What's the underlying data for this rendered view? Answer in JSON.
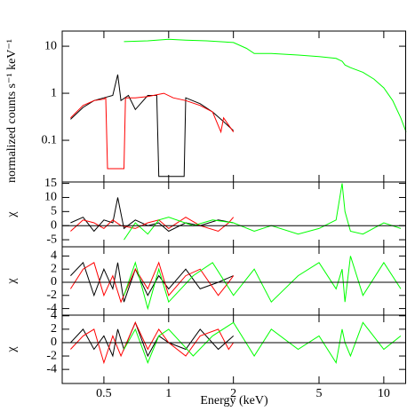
{
  "chart_data": [
    {
      "type": "line",
      "ylabel": "normalized counts s⁻¹ keV⁻¹",
      "xlog": true,
      "ylog": true,
      "xlim": [
        0.32,
        12.7
      ],
      "ylim": [
        0.013,
        21
      ],
      "yticks": [
        0.1,
        1,
        10
      ],
      "series": [
        {
          "color": "#000000",
          "x": [
            0.35,
            0.4,
            0.45,
            0.5,
            0.55,
            0.58,
            0.6,
            0.65,
            0.7,
            0.8,
            0.88,
            0.9,
            1.18,
            1.2,
            1.4,
            1.6,
            1.8,
            2.0
          ],
          "values": [
            0.28,
            0.5,
            0.7,
            0.8,
            0.9,
            2.5,
            0.7,
            0.9,
            0.45,
            0.9,
            0.9,
            0.017,
            0.017,
            0.8,
            0.6,
            0.4,
            0.25,
            0.16
          ]
        },
        {
          "color": "#ff0000",
          "x": [
            0.35,
            0.4,
            0.45,
            0.5,
            0.51,
            0.52,
            0.62,
            0.63,
            0.7,
            0.8,
            0.95,
            1.05,
            1.2,
            1.4,
            1.6,
            1.75,
            1.8,
            2.0
          ],
          "values": [
            0.3,
            0.55,
            0.7,
            0.75,
            0.8,
            0.025,
            0.025,
            0.8,
            0.8,
            0.85,
            1.0,
            0.8,
            0.7,
            0.55,
            0.4,
            0.15,
            0.3,
            0.15
          ]
        },
        {
          "color": "#00ff00",
          "x": [
            0.62,
            0.8,
            1.0,
            1.2,
            1.5,
            2.0,
            2.3,
            2.5,
            3.0,
            4.0,
            5.0,
            6.0,
            6.4,
            6.6,
            7.0,
            8.0,
            9.0,
            10.0,
            11.0,
            12.0,
            12.7
          ],
          "values": [
            12.5,
            13,
            14,
            13.5,
            13,
            12,
            9,
            7,
            7,
            6.5,
            6,
            5.5,
            4.8,
            4,
            3.5,
            2.8,
            2,
            1.3,
            0.7,
            0.3,
            0.15
          ]
        }
      ]
    },
    {
      "type": "line",
      "ylabel": "χ",
      "xlog": true,
      "xlim": [
        0.32,
        12.7
      ],
      "ylim": [
        -7.5,
        15.5
      ],
      "yticks": [
        -5,
        0,
        5,
        10,
        15
      ],
      "reference_line": 0,
      "series": [
        {
          "color": "#000000",
          "x": [
            0.35,
            0.4,
            0.45,
            0.5,
            0.55,
            0.58,
            0.62,
            0.7,
            0.8,
            0.9,
            1.0,
            1.2,
            1.4,
            1.7,
            2.0
          ],
          "values": [
            1,
            3,
            -2,
            2,
            1,
            10,
            -1,
            2,
            0,
            1,
            -2,
            1,
            0,
            2,
            1
          ]
        },
        {
          "color": "#ff0000",
          "x": [
            0.35,
            0.4,
            0.45,
            0.5,
            0.55,
            0.6,
            0.7,
            0.8,
            0.9,
            1.0,
            1.2,
            1.4,
            1.7,
            1.9,
            2.0
          ],
          "values": [
            -2,
            2,
            1,
            -1,
            2,
            0,
            -1,
            1,
            2,
            -1,
            3,
            0,
            -2,
            1,
            3
          ]
        },
        {
          "color": "#00ff00",
          "x": [
            0.62,
            0.7,
            0.8,
            0.9,
            1.0,
            1.3,
            1.6,
            2.0,
            2.5,
            3.0,
            4.0,
            5.0,
            6.0,
            6.4,
            6.6,
            7.0,
            8.0,
            10.0,
            12.0
          ],
          "values": [
            -5,
            1,
            -3,
            2,
            3,
            0,
            2,
            1,
            -2,
            0,
            -3,
            -1,
            2,
            15,
            5,
            -2,
            -3,
            1,
            -1
          ]
        }
      ]
    },
    {
      "type": "line",
      "ylabel": "χ",
      "xlog": true,
      "xlim": [
        0.32,
        12.7
      ],
      "ylim": [
        -5,
        5.4
      ],
      "yticks": [
        -4,
        -2,
        0,
        2,
        4
      ],
      "reference_line": 0,
      "series": [
        {
          "color": "#000000",
          "x": [
            0.35,
            0.4,
            0.45,
            0.5,
            0.55,
            0.58,
            0.62,
            0.7,
            0.8,
            0.9,
            1.0,
            1.2,
            1.4,
            1.7,
            2.0
          ],
          "values": [
            1,
            3,
            -2,
            2,
            -1,
            3,
            -3,
            2,
            -2,
            1,
            -1,
            2,
            -1,
            0,
            1
          ]
        },
        {
          "color": "#ff0000",
          "x": [
            0.35,
            0.4,
            0.45,
            0.5,
            0.55,
            0.6,
            0.7,
            0.8,
            0.9,
            1.0,
            1.2,
            1.4,
            1.7,
            1.9,
            2.0
          ],
          "values": [
            -1,
            2,
            3,
            -2,
            1,
            -3,
            2,
            -1,
            3,
            -2,
            1,
            2,
            -2,
            0,
            1
          ]
        },
        {
          "color": "#00ff00",
          "x": [
            0.62,
            0.7,
            0.8,
            0.9,
            1.0,
            1.3,
            1.6,
            2.0,
            2.5,
            3.0,
            4.0,
            5.0,
            6.0,
            6.4,
            6.6,
            7.0,
            8.0,
            10.0,
            12.0
          ],
          "values": [
            -2,
            3,
            -4,
            2,
            -3,
            1,
            3,
            -2,
            2,
            -3,
            1,
            3,
            -1,
            2,
            -3,
            4,
            -2,
            3,
            -1
          ]
        }
      ]
    },
    {
      "type": "line",
      "ylabel": "χ",
      "xlabel": "Energy (keV)",
      "xlog": true,
      "xlim": [
        0.32,
        12.7
      ],
      "ylim": [
        -6.1,
        4.1
      ],
      "xticks": [
        0.5,
        1,
        2,
        5,
        10
      ],
      "yticks": [
        -4,
        -2,
        0,
        2,
        4
      ],
      "reference_line": 0,
      "series": [
        {
          "color": "#000000",
          "x": [
            0.35,
            0.4,
            0.45,
            0.5,
            0.55,
            0.58,
            0.62,
            0.7,
            0.8,
            0.9,
            1.0,
            1.2,
            1.4,
            1.7,
            2.0
          ],
          "values": [
            0,
            2,
            -1,
            1,
            -2,
            2,
            -1,
            3,
            -2,
            1,
            0,
            -1,
            2,
            -1,
            1
          ]
        },
        {
          "color": "#ff0000",
          "x": [
            0.35,
            0.4,
            0.45,
            0.5,
            0.55,
            0.6,
            0.7,
            0.8,
            0.9,
            1.0,
            1.2,
            1.4,
            1.7,
            1.9,
            2.0
          ],
          "values": [
            -1,
            1,
            2,
            -3,
            1,
            -2,
            3,
            -1,
            2,
            0,
            -2,
            1,
            2,
            -1,
            0
          ]
        },
        {
          "color": "#00ff00",
          "x": [
            0.62,
            0.7,
            0.8,
            0.9,
            1.0,
            1.3,
            1.6,
            2.0,
            2.5,
            3.0,
            4.0,
            5.0,
            6.0,
            6.4,
            6.6,
            7.0,
            8.0,
            10.0,
            12.0
          ],
          "values": [
            -1,
            2,
            -3,
            1,
            2,
            -2,
            1,
            3,
            -2,
            2,
            -1,
            1,
            -3,
            2,
            0,
            -2,
            3,
            -1,
            1
          ]
        }
      ]
    }
  ]
}
